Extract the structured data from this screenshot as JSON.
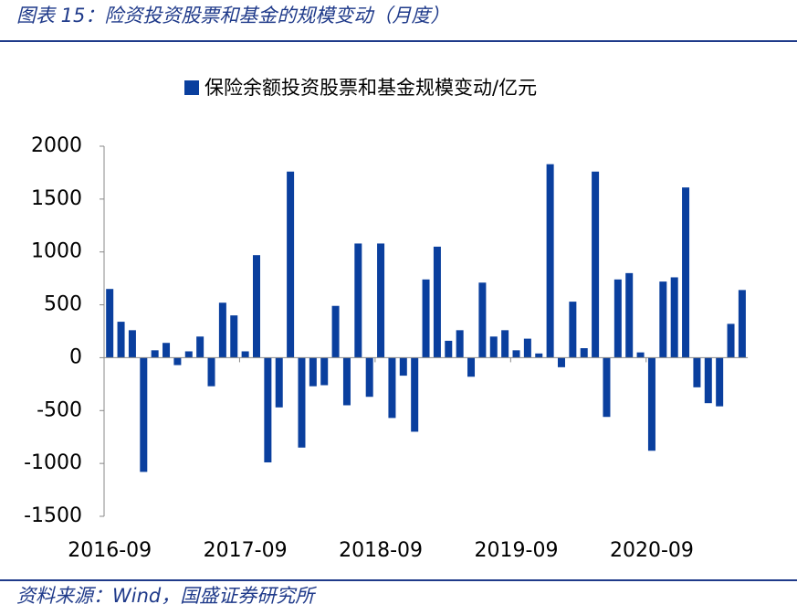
{
  "header": {
    "title": "图表 15：险资投资股票和基金的规模变动（月度）"
  },
  "chart_data": {
    "type": "bar",
    "legend": "保险余额投资股票和基金规模变动/亿元",
    "categories": [
      "2016-09",
      null,
      null,
      null,
      null,
      null,
      null,
      null,
      null,
      null,
      null,
      null,
      "2017-09",
      null,
      null,
      null,
      null,
      null,
      null,
      null,
      null,
      null,
      null,
      null,
      "2018-09",
      null,
      null,
      null,
      null,
      null,
      null,
      null,
      null,
      null,
      null,
      null,
      "2019-09",
      null,
      null,
      null,
      null,
      null,
      null,
      null,
      null,
      null,
      null,
      null,
      "2020-09",
      null,
      null,
      null,
      null,
      null,
      null,
      null,
      null
    ],
    "values": [
      650,
      340,
      260,
      -1080,
      70,
      140,
      -70,
      60,
      200,
      -270,
      520,
      400,
      60,
      970,
      -990,
      -470,
      1760,
      -850,
      -270,
      -260,
      490,
      -450,
      1080,
      -370,
      1080,
      -570,
      -170,
      -700,
      740,
      1050,
      160,
      260,
      -180,
      710,
      200,
      260,
      70,
      180,
      40,
      1830,
      -90,
      530,
      90,
      1760,
      -560,
      740,
      800,
      50,
      -880,
      720,
      760,
      1610,
      -280,
      -430,
      -460,
      320,
      640
    ],
    "color": "#0a3f9e",
    "ylim": [
      -1500,
      2000
    ],
    "yticks": [
      -1500,
      -1000,
      -500,
      0,
      500,
      1000,
      1500,
      2000
    ],
    "grid": false
  },
  "footer": {
    "source": "资料来源：Wind，国盛证券研究所"
  }
}
